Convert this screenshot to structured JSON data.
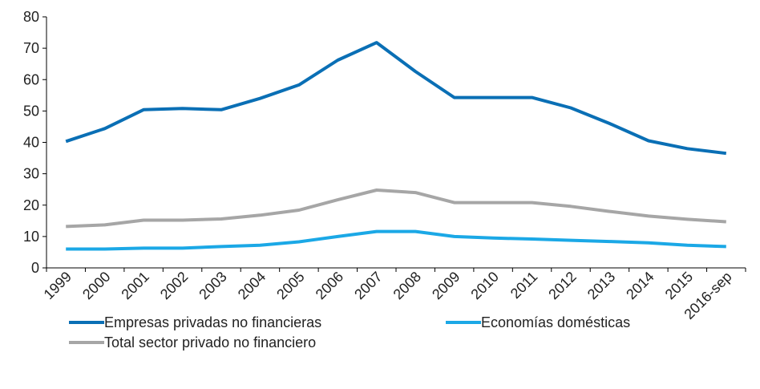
{
  "chart_data": {
    "type": "line",
    "title": "",
    "xlabel": "",
    "ylabel": "",
    "categories": [
      "1999",
      "2000",
      "2001",
      "2002",
      "2003",
      "2004",
      "2005",
      "2006",
      "2007",
      "2008",
      "2009",
      "2010",
      "2011",
      "2012",
      "2013",
      "2014",
      "2015",
      "2016-sep"
    ],
    "ylim": [
      0,
      80
    ],
    "yticks": [
      0,
      10,
      20,
      30,
      40,
      50,
      60,
      70,
      80
    ],
    "grid": false,
    "legend_position": "bottom",
    "series": [
      {
        "name": "Empresas privadas no financieras",
        "color": "#0a6fb5",
        "values": [
          40.3,
          44.4,
          50.4,
          50.8,
          50.4,
          54.0,
          58.3,
          66.2,
          71.8,
          62.6,
          54.3,
          54.3,
          54.3,
          51.0,
          46.0,
          40.5,
          38.0,
          36.5
        ]
      },
      {
        "name": "Economías domésticas",
        "color": "#1ba8e6",
        "values": [
          6.0,
          6.0,
          6.3,
          6.3,
          6.8,
          7.2,
          8.3,
          10.0,
          11.6,
          11.6,
          10.0,
          9.5,
          9.2,
          8.8,
          8.4,
          8.0,
          7.2,
          6.8
        ]
      },
      {
        "name": "Total sector privado no financiero",
        "color": "#a6a6a6",
        "values": [
          13.2,
          13.7,
          15.2,
          15.2,
          15.6,
          16.8,
          18.4,
          21.7,
          24.8,
          24.0,
          20.8,
          20.8,
          20.8,
          19.6,
          18.0,
          16.5,
          15.5,
          14.7
        ]
      }
    ]
  }
}
